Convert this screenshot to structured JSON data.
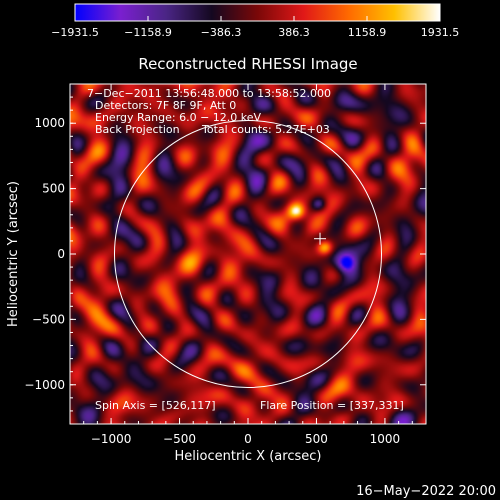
{
  "chart_data": {
    "type": "heatmap",
    "title": "Reconstructed RHESSI Image",
    "xlabel": "Heliocentric X (arcsec)",
    "ylabel": "Heliocentric Y (arcsec)",
    "xlim": [
      -1300,
      1300
    ],
    "ylim": [
      -1300,
      1300
    ],
    "xticks": [
      -1000,
      -500,
      0,
      500,
      1000
    ],
    "yticks": [
      -1000,
      -500,
      0,
      500,
      1000
    ],
    "xtick_labels": [
      "−1000",
      "−500",
      "0",
      "500",
      "1000"
    ],
    "ytick_labels": [
      "−1000",
      "−500",
      "0",
      "500",
      "1000"
    ],
    "colorbar": {
      "min": -1931.5,
      "max": 1931.5,
      "tick_values": [
        -1931.5,
        -1158.9,
        -386.3,
        386.3,
        1158.9,
        1931.5
      ],
      "tick_labels": [
        "−1931.5",
        "−1158.9",
        "−386.3",
        "386.3",
        "1158.9",
        "1931.5"
      ],
      "colors": [
        "#0000ff",
        "#7a1fcf",
        "#4a2585",
        "#140820",
        "#7a0808",
        "#e01818",
        "#ff6a00",
        "#ffc000",
        "#ffffff"
      ]
    },
    "info_lines": [
      "7−Dec−2011 13:56:48.000 to 13:58:52.000",
      "Detectors: 7F 8F 9F, Att 0",
      "Energy Range: 6.0 − 12.0 keV",
      "Back Projection"
    ],
    "total_counts_text": "Total counts: 5.27E+03",
    "spin_axis_text": "Spin Axis = [526,117]",
    "flare_position_text": "Flare Position = [337,331]",
    "solar_disk": {
      "center": [
        0,
        0
      ],
      "radius": 975,
      "color": "#ffffff"
    },
    "marker": {
      "type": "plus",
      "x": 526,
      "y": 117
    },
    "sources": [
      {
        "x": 355,
        "y": 325,
        "value": 1931.5,
        "sigma": 45
      },
      {
        "x": 560,
        "y": 50,
        "value": 1700,
        "sigma": 40
      },
      {
        "x": 720,
        "y": -70,
        "value": -1931.5,
        "sigma": 55
      },
      {
        "x": 520,
        "y": 380,
        "value": -1300,
        "sigma": 40
      }
    ]
  },
  "timestamp": "16−May−2022 20:00"
}
